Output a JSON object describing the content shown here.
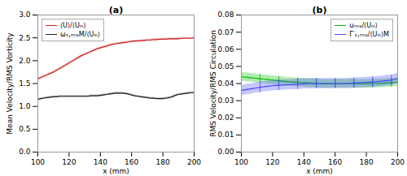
{
  "chart_data": [
    {
      "type": "line",
      "title": "(a)",
      "xlabel": "x (mm)",
      "ylabel": "Mean Velocity/RMS Vorticity",
      "x": [
        100,
        102,
        104,
        106,
        108,
        110,
        112,
        114,
        116,
        118,
        120,
        122,
        124,
        126,
        128,
        130,
        132,
        134,
        136,
        138,
        140,
        142,
        144,
        146,
        148,
        150,
        152,
        154,
        156,
        158,
        160,
        162,
        164,
        166,
        168,
        170,
        172,
        174,
        176,
        178,
        180,
        182,
        184,
        186,
        188,
        190,
        192,
        194,
        196,
        198,
        200
      ],
      "series": [
        {
          "name": "⟨U⟩/⟨Uᵢₙ⟩",
          "color": "#cc2222",
          "values": [
            1.6,
            1.63,
            1.66,
            1.69,
            1.72,
            1.75,
            1.79,
            1.83,
            1.87,
            1.91,
            1.95,
            1.99,
            2.03,
            2.07,
            2.11,
            2.14,
            2.17,
            2.2,
            2.23,
            2.26,
            2.28,
            2.3,
            2.32,
            2.34,
            2.36,
            2.37,
            2.38,
            2.39,
            2.4,
            2.41,
            2.42,
            2.43,
            2.43,
            2.44,
            2.44,
            2.45,
            2.45,
            2.46,
            2.46,
            2.47,
            2.47,
            2.47,
            2.48,
            2.48,
            2.48,
            2.48,
            2.49,
            2.49,
            2.49,
            2.49,
            2.5
          ],
          "errors": [
            0.02,
            0.02,
            0.02,
            0.02,
            0.02,
            0.02,
            0.02,
            0.02,
            0.02,
            0.02,
            0.02,
            0.02,
            0.02,
            0.02,
            0.02,
            0.02,
            0.02,
            0.02,
            0.02,
            0.02,
            0.02,
            0.02,
            0.02,
            0.02,
            0.02,
            0.02,
            0.02,
            0.02,
            0.02,
            0.02,
            0.02,
            0.02,
            0.02,
            0.02,
            0.02,
            0.02,
            0.02,
            0.02,
            0.02,
            0.02,
            0.02,
            0.02,
            0.02,
            0.02,
            0.02,
            0.02,
            0.02,
            0.02,
            0.02,
            0.02,
            0.02
          ]
        },
        {
          "name": "ωₓ,ᵣₘₛM/⟨Uᵢₙ⟩",
          "color": "#222222",
          "values": [
            1.15,
            1.17,
            1.18,
            1.19,
            1.2,
            1.21,
            1.21,
            1.22,
            1.22,
            1.22,
            1.22,
            1.22,
            1.22,
            1.22,
            1.22,
            1.22,
            1.22,
            1.23,
            1.23,
            1.23,
            1.24,
            1.25,
            1.26,
            1.27,
            1.28,
            1.29,
            1.29,
            1.29,
            1.28,
            1.27,
            1.25,
            1.23,
            1.22,
            1.21,
            1.2,
            1.19,
            1.18,
            1.18,
            1.17,
            1.17,
            1.17,
            1.18,
            1.19,
            1.21,
            1.24,
            1.26,
            1.27,
            1.28,
            1.29,
            1.3,
            1.3
          ],
          "errors": [
            0.02,
            0.02,
            0.02,
            0.02,
            0.02,
            0.02,
            0.02,
            0.02,
            0.02,
            0.02,
            0.02,
            0.02,
            0.02,
            0.02,
            0.02,
            0.02,
            0.02,
            0.02,
            0.02,
            0.02,
            0.02,
            0.02,
            0.02,
            0.02,
            0.02,
            0.02,
            0.02,
            0.02,
            0.02,
            0.02,
            0.02,
            0.02,
            0.02,
            0.02,
            0.02,
            0.02,
            0.02,
            0.02,
            0.02,
            0.02,
            0.02,
            0.02,
            0.02,
            0.02,
            0.02,
            0.02,
            0.02,
            0.02,
            0.02,
            0.02,
            0.02
          ]
        }
      ],
      "xlim": [
        100,
        200
      ],
      "xticks": [
        100,
        120,
        140,
        160,
        180,
        200
      ],
      "ylim": [
        0,
        3.0
      ],
      "yticks": [
        {
          "value": 0,
          "label": "0.0"
        },
        0.5,
        {
          "value": 1.0,
          "label": "1.0"
        },
        1.5,
        {
          "value": 2.0,
          "label": "2.0"
        },
        2.5,
        {
          "value": 3.0,
          "label": "3.0"
        }
      ],
      "grid": false,
      "legend": "upper left"
    },
    {
      "type": "line",
      "title": "(b)",
      "xlabel": "x (mm)",
      "ylabel": "RMS Velocity/RMS Circulation",
      "x": [
        100,
        102,
        104,
        106,
        108,
        110,
        112,
        114,
        116,
        118,
        120,
        122,
        124,
        126,
        128,
        130,
        132,
        134,
        136,
        138,
        140,
        142,
        144,
        146,
        148,
        150,
        152,
        154,
        156,
        158,
        160,
        162,
        164,
        166,
        168,
        170,
        172,
        174,
        176,
        178,
        180,
        182,
        184,
        186,
        188,
        190,
        192,
        194,
        196,
        198,
        200
      ],
      "error_bar_x": [
        100,
        112,
        124,
        136,
        148,
        160,
        172,
        184,
        196
      ],
      "series": [
        {
          "name": "uᵣₘₛ/⟨Uᵢₙ⟩",
          "color": "#00bb00",
          "values": [
            0.044,
            0.0438,
            0.0436,
            0.0434,
            0.0432,
            0.043,
            0.0428,
            0.0426,
            0.0424,
            0.0422,
            0.042,
            0.0418,
            0.0416,
            0.0414,
            0.0412,
            0.041,
            0.0409,
            0.0408,
            0.0407,
            0.0406,
            0.0405,
            0.0404,
            0.0403,
            0.0402,
            0.0401,
            0.04,
            0.0399,
            0.0399,
            0.0399,
            0.0399,
            0.04,
            0.04,
            0.04,
            0.04,
            0.04,
            0.04,
            0.04,
            0.0399,
            0.0399,
            0.0399,
            0.0399,
            0.0399,
            0.04,
            0.04,
            0.0401,
            0.0402,
            0.0403,
            0.0404,
            0.0405,
            0.0406,
            0.041
          ],
          "errors": [
            0.0025,
            0.0025,
            0.0025,
            0.0025,
            0.0025,
            0.0025,
            0.0025,
            0.0025,
            0.0025,
            0.0025,
            0.0025,
            0.0025,
            0.0025,
            0.0025,
            0.0025,
            0.0025,
            0.0025,
            0.0025,
            0.0025,
            0.0025,
            0.0025,
            0.0025,
            0.0025,
            0.0025,
            0.0025,
            0.0025,
            0.0025,
            0.0025,
            0.0025,
            0.0025,
            0.0025,
            0.0025,
            0.0025,
            0.0025,
            0.0025,
            0.0025,
            0.0025,
            0.0025,
            0.0025,
            0.0025,
            0.0025,
            0.0025,
            0.0025,
            0.0025,
            0.0025,
            0.0025,
            0.0025,
            0.0025,
            0.0025,
            0.0025,
            0.0025
          ]
        },
        {
          "name": "Γ′ₓ,ᵣₘₛ/⟨Uᵢₙ⟩M",
          "color": "#4444ff",
          "values": [
            0.036,
            0.0363,
            0.0366,
            0.0369,
            0.0372,
            0.0375,
            0.0378,
            0.0381,
            0.0383,
            0.0385,
            0.0387,
            0.0389,
            0.039,
            0.0391,
            0.0392,
            0.0393,
            0.0394,
            0.0395,
            0.0396,
            0.0397,
            0.0398,
            0.0399,
            0.04,
            0.04,
            0.04,
            0.04,
            0.04,
            0.04,
            0.04,
            0.04,
            0.04,
            0.04,
            0.04,
            0.04,
            0.0401,
            0.0402,
            0.0403,
            0.0404,
            0.0405,
            0.0406,
            0.0407,
            0.0408,
            0.0409,
            0.041,
            0.0412,
            0.0414,
            0.0416,
            0.0418,
            0.042,
            0.0425,
            0.043
          ],
          "errors": [
            0.003,
            0.003,
            0.003,
            0.003,
            0.003,
            0.003,
            0.003,
            0.003,
            0.003,
            0.003,
            0.003,
            0.003,
            0.003,
            0.003,
            0.003,
            0.003,
            0.003,
            0.003,
            0.003,
            0.003,
            0.003,
            0.003,
            0.003,
            0.003,
            0.003,
            0.003,
            0.003,
            0.003,
            0.003,
            0.003,
            0.003,
            0.003,
            0.003,
            0.003,
            0.003,
            0.003,
            0.003,
            0.003,
            0.003,
            0.003,
            0.003,
            0.003,
            0.003,
            0.003,
            0.003,
            0.003,
            0.003,
            0.003,
            0.003,
            0.003,
            0.003
          ]
        }
      ],
      "xlim": [
        100,
        200
      ],
      "xticks": [
        100,
        120,
        140,
        160,
        180,
        200
      ],
      "ylim": [
        0,
        0.08
      ],
      "yticks": [
        {
          "value": 0,
          "label": "0.00"
        },
        0.01,
        0.02,
        0.03,
        0.04,
        0.05,
        0.06,
        0.07,
        0.08
      ],
      "grid": false,
      "legend": "upper right"
    }
  ]
}
